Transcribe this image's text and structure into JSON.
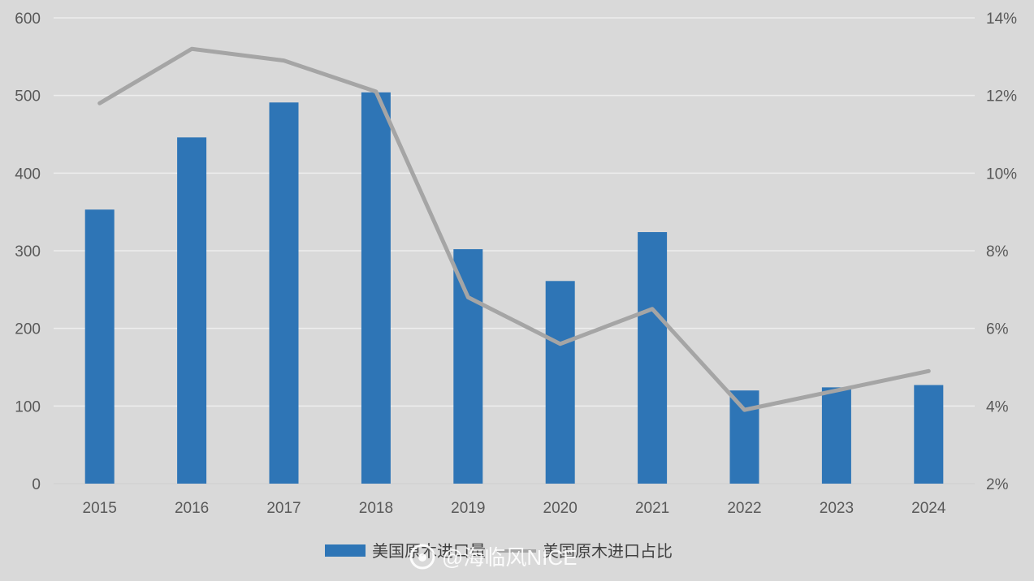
{
  "chart_data": {
    "type": "bar",
    "categories": [
      "2015",
      "2016",
      "2017",
      "2018",
      "2019",
      "2020",
      "2021",
      "2022",
      "2023",
      "2024"
    ],
    "series": [
      {
        "name": "美国原木进口量",
        "type": "bar",
        "axis": "left",
        "color": "#2e75b6",
        "values": [
          353,
          446,
          491,
          504,
          302,
          261,
          324,
          120,
          124,
          127
        ]
      },
      {
        "name": "美国原木进口占比",
        "type": "line",
        "axis": "right",
        "color": "#a5a5a5",
        "values": [
          11.8,
          13.2,
          12.9,
          12.1,
          6.8,
          5.6,
          6.5,
          3.9,
          4.4,
          4.9
        ]
      }
    ],
    "y_left": {
      "ylim": [
        0,
        600
      ],
      "ticks": [
        "0",
        "100",
        "200",
        "300",
        "400",
        "500",
        "600"
      ]
    },
    "y_right": {
      "ylim": [
        2,
        14
      ],
      "ticks": [
        "2%",
        "4%",
        "6%",
        "8%",
        "10%",
        "12%",
        "14%"
      ]
    },
    "grid": true,
    "legend_position": "bottom",
    "watermark": "@海临风NICE"
  }
}
